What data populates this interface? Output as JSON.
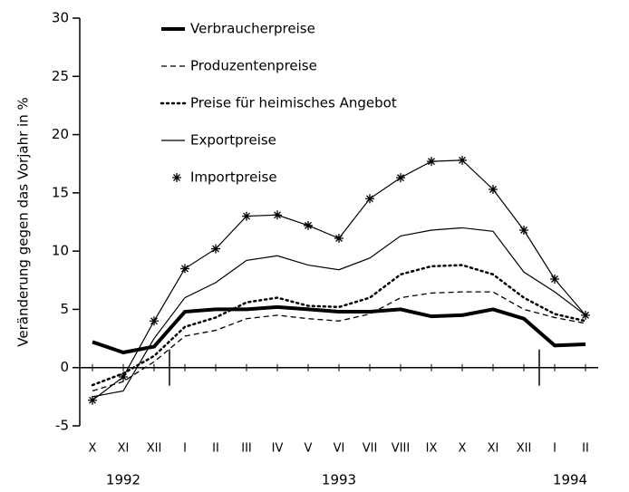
{
  "chart_data": {
    "type": "line",
    "ylabel": "Veränderung gegen das Vorjahr in %",
    "categories": [
      "X",
      "XI",
      "XII",
      "I",
      "II",
      "III",
      "IV",
      "V",
      "VI",
      "VII",
      "VIII",
      "IX",
      "X",
      "XI",
      "XII",
      "I",
      "II"
    ],
    "year_groups": [
      "1992",
      "1993",
      "1994"
    ],
    "ylim": [
      -5,
      30
    ],
    "yticks": [
      -5,
      0,
      5,
      10,
      15,
      20,
      25,
      30
    ],
    "grid": false,
    "series": [
      {
        "name": "Verbraucherpreise",
        "color": "#000000",
        "dash": "solid",
        "width": 4,
        "marker": "none",
        "values": [
          2.2,
          1.3,
          1.8,
          4.8,
          5.0,
          5.0,
          5.2,
          5.0,
          4.8,
          4.8,
          5.0,
          4.4,
          4.5,
          5.0,
          4.2,
          1.9,
          2.0
        ]
      },
      {
        "name": "Produzentenpreise",
        "color": "#000000",
        "dash": "dashed",
        "width": 1.3,
        "marker": "none",
        "values": [
          -2.0,
          -1.2,
          0.5,
          2.7,
          3.2,
          4.2,
          4.5,
          4.2,
          4.0,
          4.6,
          6.0,
          6.4,
          6.5,
          6.5,
          5.0,
          4.3,
          3.8
        ]
      },
      {
        "name": "Preise für heimisches Angebot",
        "color": "#000000",
        "dash": "dotted",
        "width": 2.5,
        "marker": "none",
        "values": [
          -1.5,
          -0.5,
          1.0,
          3.5,
          4.3,
          5.6,
          6.0,
          5.3,
          5.2,
          6.0,
          8.0,
          8.7,
          8.8,
          8.0,
          6.0,
          4.6,
          4.0
        ]
      },
      {
        "name": "Exportpreise",
        "color": "#000000",
        "dash": "solid",
        "width": 1.2,
        "marker": "none",
        "values": [
          -2.5,
          -2.0,
          2.5,
          6.0,
          7.3,
          9.2,
          9.6,
          8.8,
          8.4,
          9.4,
          11.3,
          11.8,
          12.0,
          11.7,
          8.2,
          6.5,
          4.5
        ]
      },
      {
        "name": "Importpreise",
        "color": "#000000",
        "dash": "solid",
        "width": 1.2,
        "marker": "star",
        "values": [
          -2.8,
          -0.8,
          4.0,
          8.5,
          10.2,
          13.0,
          13.1,
          12.2,
          11.1,
          14.5,
          16.3,
          17.7,
          17.8,
          15.3,
          11.8,
          7.6,
          4.5
        ]
      }
    ]
  }
}
